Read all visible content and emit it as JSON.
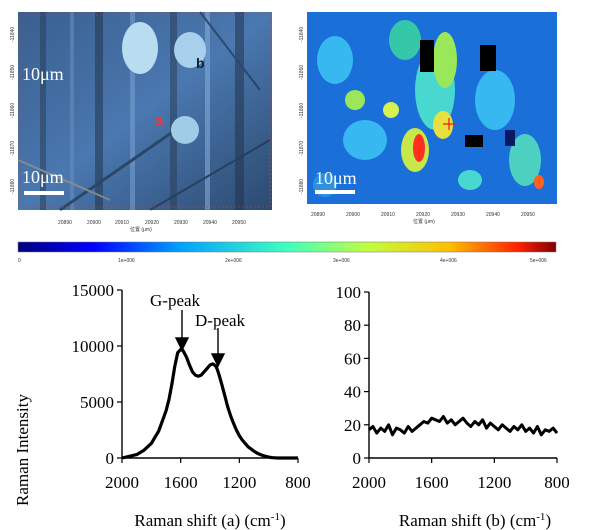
{
  "maps": {
    "optical": {
      "scale_top": "10μm",
      "scale_bottom": "10μm",
      "point_a": "a",
      "point_b": "b",
      "x_ticks": [
        "20890",
        "20900",
        "20910",
        "20920",
        "20930",
        "20940",
        "20950"
      ],
      "y_ticks": [
        "-11840",
        "-11850",
        "-11860",
        "-11870",
        "-11880"
      ],
      "x_label": "位置 (μm)"
    },
    "raman_map": {
      "scale": "10μm",
      "x_ticks": [
        "20890",
        "20900",
        "20910",
        "20920",
        "20930",
        "20940",
        "20950"
      ],
      "y_ticks": [
        "-11840",
        "-11850",
        "-11860",
        "-11870",
        "-11880"
      ],
      "x_label": "位置 (μm)"
    },
    "colorbar": {
      "ticks": [
        "0",
        "1e+006",
        "2e+006",
        "3e+006",
        "4e+006",
        "5e+006"
      ],
      "colors": [
        "#000080",
        "#0000ff",
        "#00a0ff",
        "#40ffc0",
        "#c0ff40",
        "#ffc000",
        "#ff2000",
        "#800000"
      ]
    }
  },
  "chart_data": [
    {
      "type": "line",
      "ylabel": "Raman Intensity",
      "xlabel": "Raman shift (a) (cm-1)",
      "xlim": [
        2000,
        800
      ],
      "ylim": [
        0,
        15000
      ],
      "xticks": [
        "2000",
        "1600",
        "1200",
        "800"
      ],
      "yticks": [
        "0",
        "5000",
        "10000",
        "15000"
      ],
      "annotations": [
        "G-peak",
        "D-peak"
      ],
      "x": [
        2000,
        1900,
        1850,
        1800,
        1750,
        1700,
        1680,
        1660,
        1640,
        1620,
        1600,
        1590,
        1580,
        1560,
        1540,
        1520,
        1500,
        1480,
        1460,
        1440,
        1420,
        1400,
        1380,
        1360,
        1350,
        1340,
        1320,
        1300,
        1280,
        1260,
        1240,
        1220,
        1200,
        1180,
        1160,
        1140,
        1120,
        1100,
        1080,
        1060,
        1040,
        1020,
        1000,
        980,
        960,
        940,
        920,
        900,
        880,
        860,
        840,
        820,
        800
      ],
      "y": [
        0,
        300,
        700,
        1300,
        2400,
        4200,
        5200,
        6600,
        8200,
        9400,
        9700,
        9700,
        9500,
        9000,
        8300,
        7700,
        7400,
        7300,
        7400,
        7700,
        8000,
        8300,
        8400,
        8200,
        7900,
        7500,
        6600,
        5600,
        4600,
        3800,
        3100,
        2500,
        2000,
        1600,
        1300,
        1000,
        800,
        600,
        450,
        320,
        220,
        150,
        80,
        40,
        20,
        0,
        0,
        0,
        0,
        0,
        0,
        0,
        0
      ],
      "series": [
        {
          "name": "a"
        }
      ]
    },
    {
      "type": "line",
      "xlabel": "Raman shift (b) (cm-1)",
      "xlim": [
        2000,
        800
      ],
      "ylim": [
        0,
        100
      ],
      "xticks": [
        "2000",
        "1600",
        "1200",
        "800"
      ],
      "yticks": [
        "0",
        "20",
        "40",
        "60",
        "80",
        "100"
      ],
      "x": [
        2000,
        1975,
        1950,
        1925,
        1900,
        1875,
        1850,
        1825,
        1800,
        1775,
        1750,
        1725,
        1700,
        1675,
        1650,
        1625,
        1600,
        1575,
        1550,
        1525,
        1500,
        1475,
        1450,
        1425,
        1400,
        1375,
        1350,
        1325,
        1300,
        1275,
        1250,
        1225,
        1200,
        1175,
        1150,
        1125,
        1100,
        1075,
        1050,
        1025,
        1000,
        975,
        950,
        925,
        900,
        875,
        850,
        825,
        800
      ],
      "y": [
        17,
        19,
        15,
        18,
        16,
        20,
        14,
        18,
        17,
        15,
        19,
        16,
        18,
        20,
        22,
        21,
        24,
        23,
        22,
        25,
        21,
        23,
        20,
        22,
        24,
        21,
        19,
        22,
        20,
        23,
        18,
        21,
        19,
        17,
        20,
        18,
        16,
        19,
        17,
        20,
        16,
        18,
        15,
        19,
        14,
        17,
        16,
        18,
        15
      ],
      "series": [
        {
          "name": "b"
        }
      ]
    }
  ],
  "labels": {
    "sup": "-1",
    "unit_close": ")"
  }
}
